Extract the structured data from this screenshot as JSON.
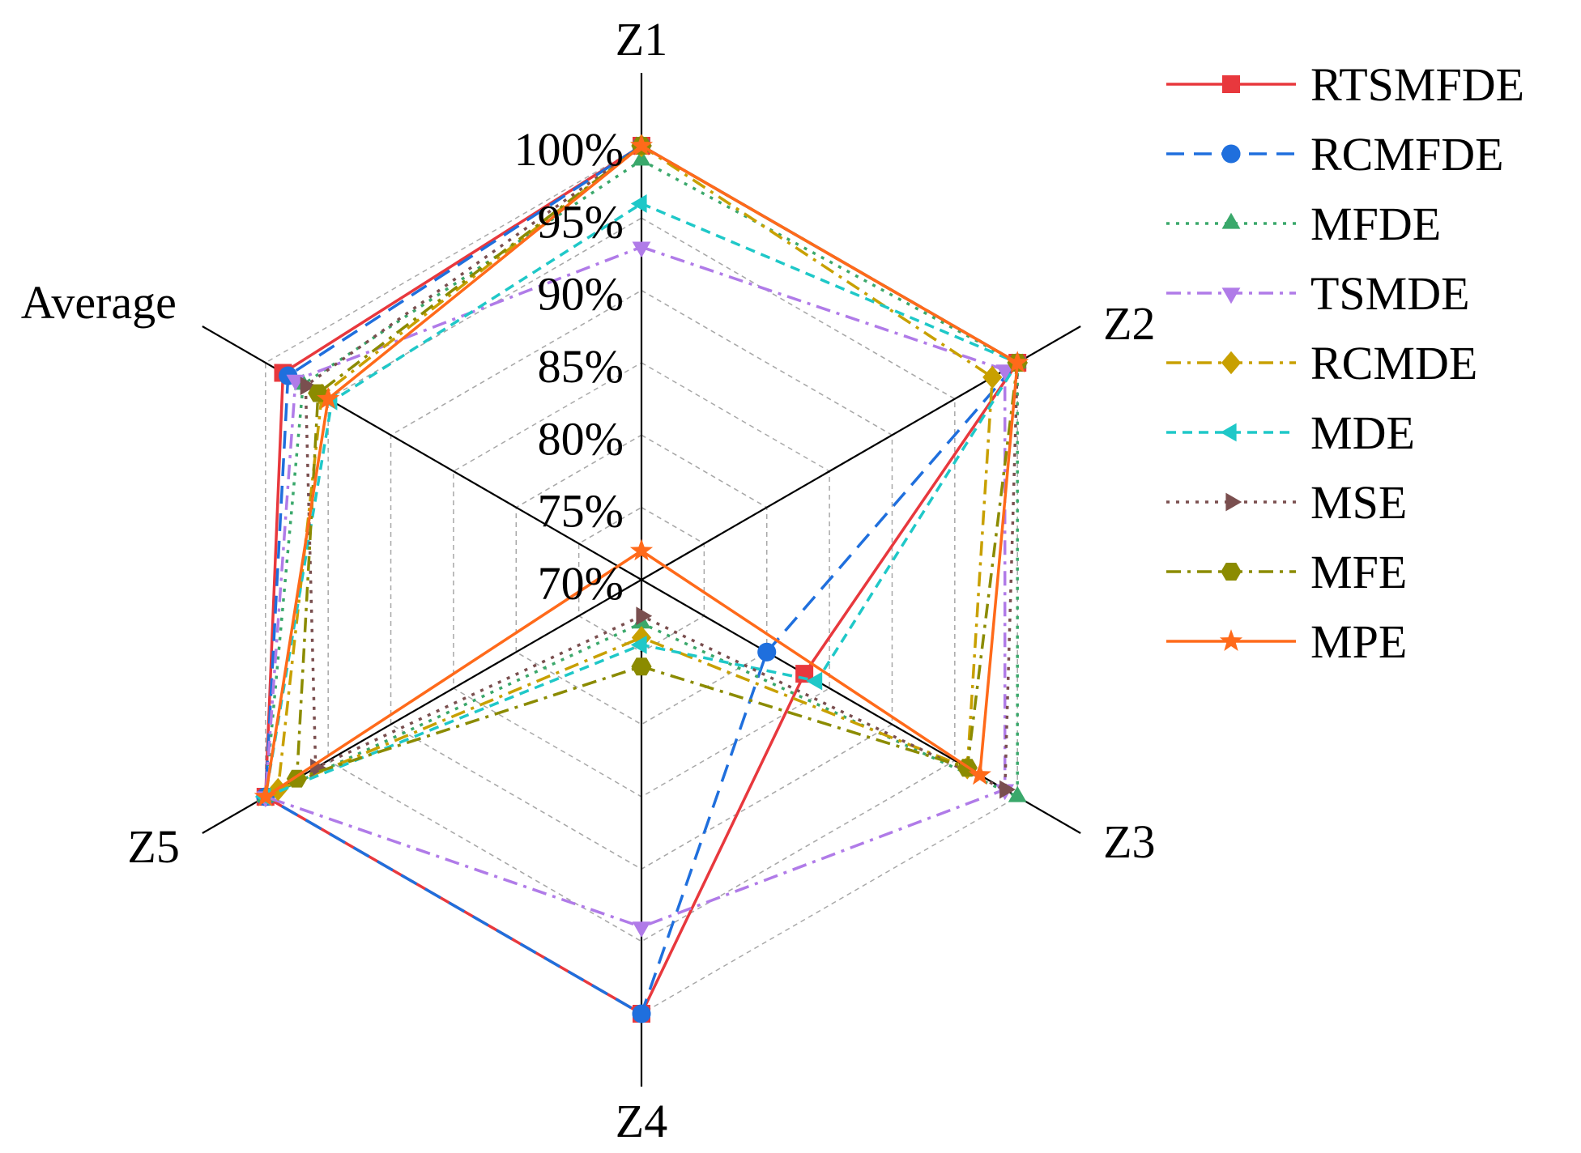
{
  "chart_data": {
    "type": "radar",
    "axes": [
      "Z1",
      "Z2",
      "Z3",
      "Z4",
      "Z5",
      "Average"
    ],
    "rlim": [
      70,
      100
    ],
    "ticks": [
      70,
      75,
      80,
      85,
      90,
      95,
      100
    ],
    "tick_labels": [
      "70%",
      "75%",
      "80%",
      "85%",
      "90%",
      "95%",
      "100%"
    ],
    "grid": true,
    "legend_position": "right",
    "series": [
      {
        "name": "RTSMFDE",
        "color": "#e8383d",
        "dash": "solid",
        "marker": "square",
        "values": [
          100,
          100,
          83,
          100,
          100,
          98.6
        ]
      },
      {
        "name": "RCMFDE",
        "color": "#1f6fdd",
        "dash": "longdash",
        "marker": "circle",
        "values": [
          100,
          100,
          80,
          100,
          100,
          98.2
        ]
      },
      {
        "name": "MFDE",
        "color": "#3aa86b",
        "dash": "dot",
        "marker": "triangle-up",
        "values": [
          99,
          100,
          100,
          73,
          100,
          97
        ]
      },
      {
        "name": "TSMDE",
        "color": "#b07be8",
        "dash": "dashdot",
        "marker": "triangle-down",
        "values": [
          93,
          99,
          99,
          94,
          100,
          97.6
        ]
      },
      {
        "name": "RCMDE",
        "color": "#c8a000",
        "dash": "dashdot",
        "marker": "diamond",
        "values": [
          100,
          98,
          96,
          74,
          99,
          95.5
        ]
      },
      {
        "name": "MDE",
        "color": "#1fc8c8",
        "dash": "dash",
        "marker": "triangle-left",
        "values": [
          96,
          100,
          84,
          74.5,
          100,
          94.7
        ]
      },
      {
        "name": "MSE",
        "color": "#7a4f4f",
        "dash": "dot",
        "marker": "triangle-right",
        "values": [
          100,
          100,
          99,
          72.5,
          96,
          96.8
        ]
      },
      {
        "name": "MFE",
        "color": "#8b8b00",
        "dash": "dashdot",
        "marker": "hexagon",
        "values": [
          100,
          100,
          96,
          76,
          97.5,
          95.8
        ]
      },
      {
        "name": "MPE",
        "color": "#ff6a1a",
        "dash": "solid",
        "marker": "star",
        "values": [
          100,
          100,
          97,
          68,
          100,
          95
        ]
      }
    ]
  }
}
